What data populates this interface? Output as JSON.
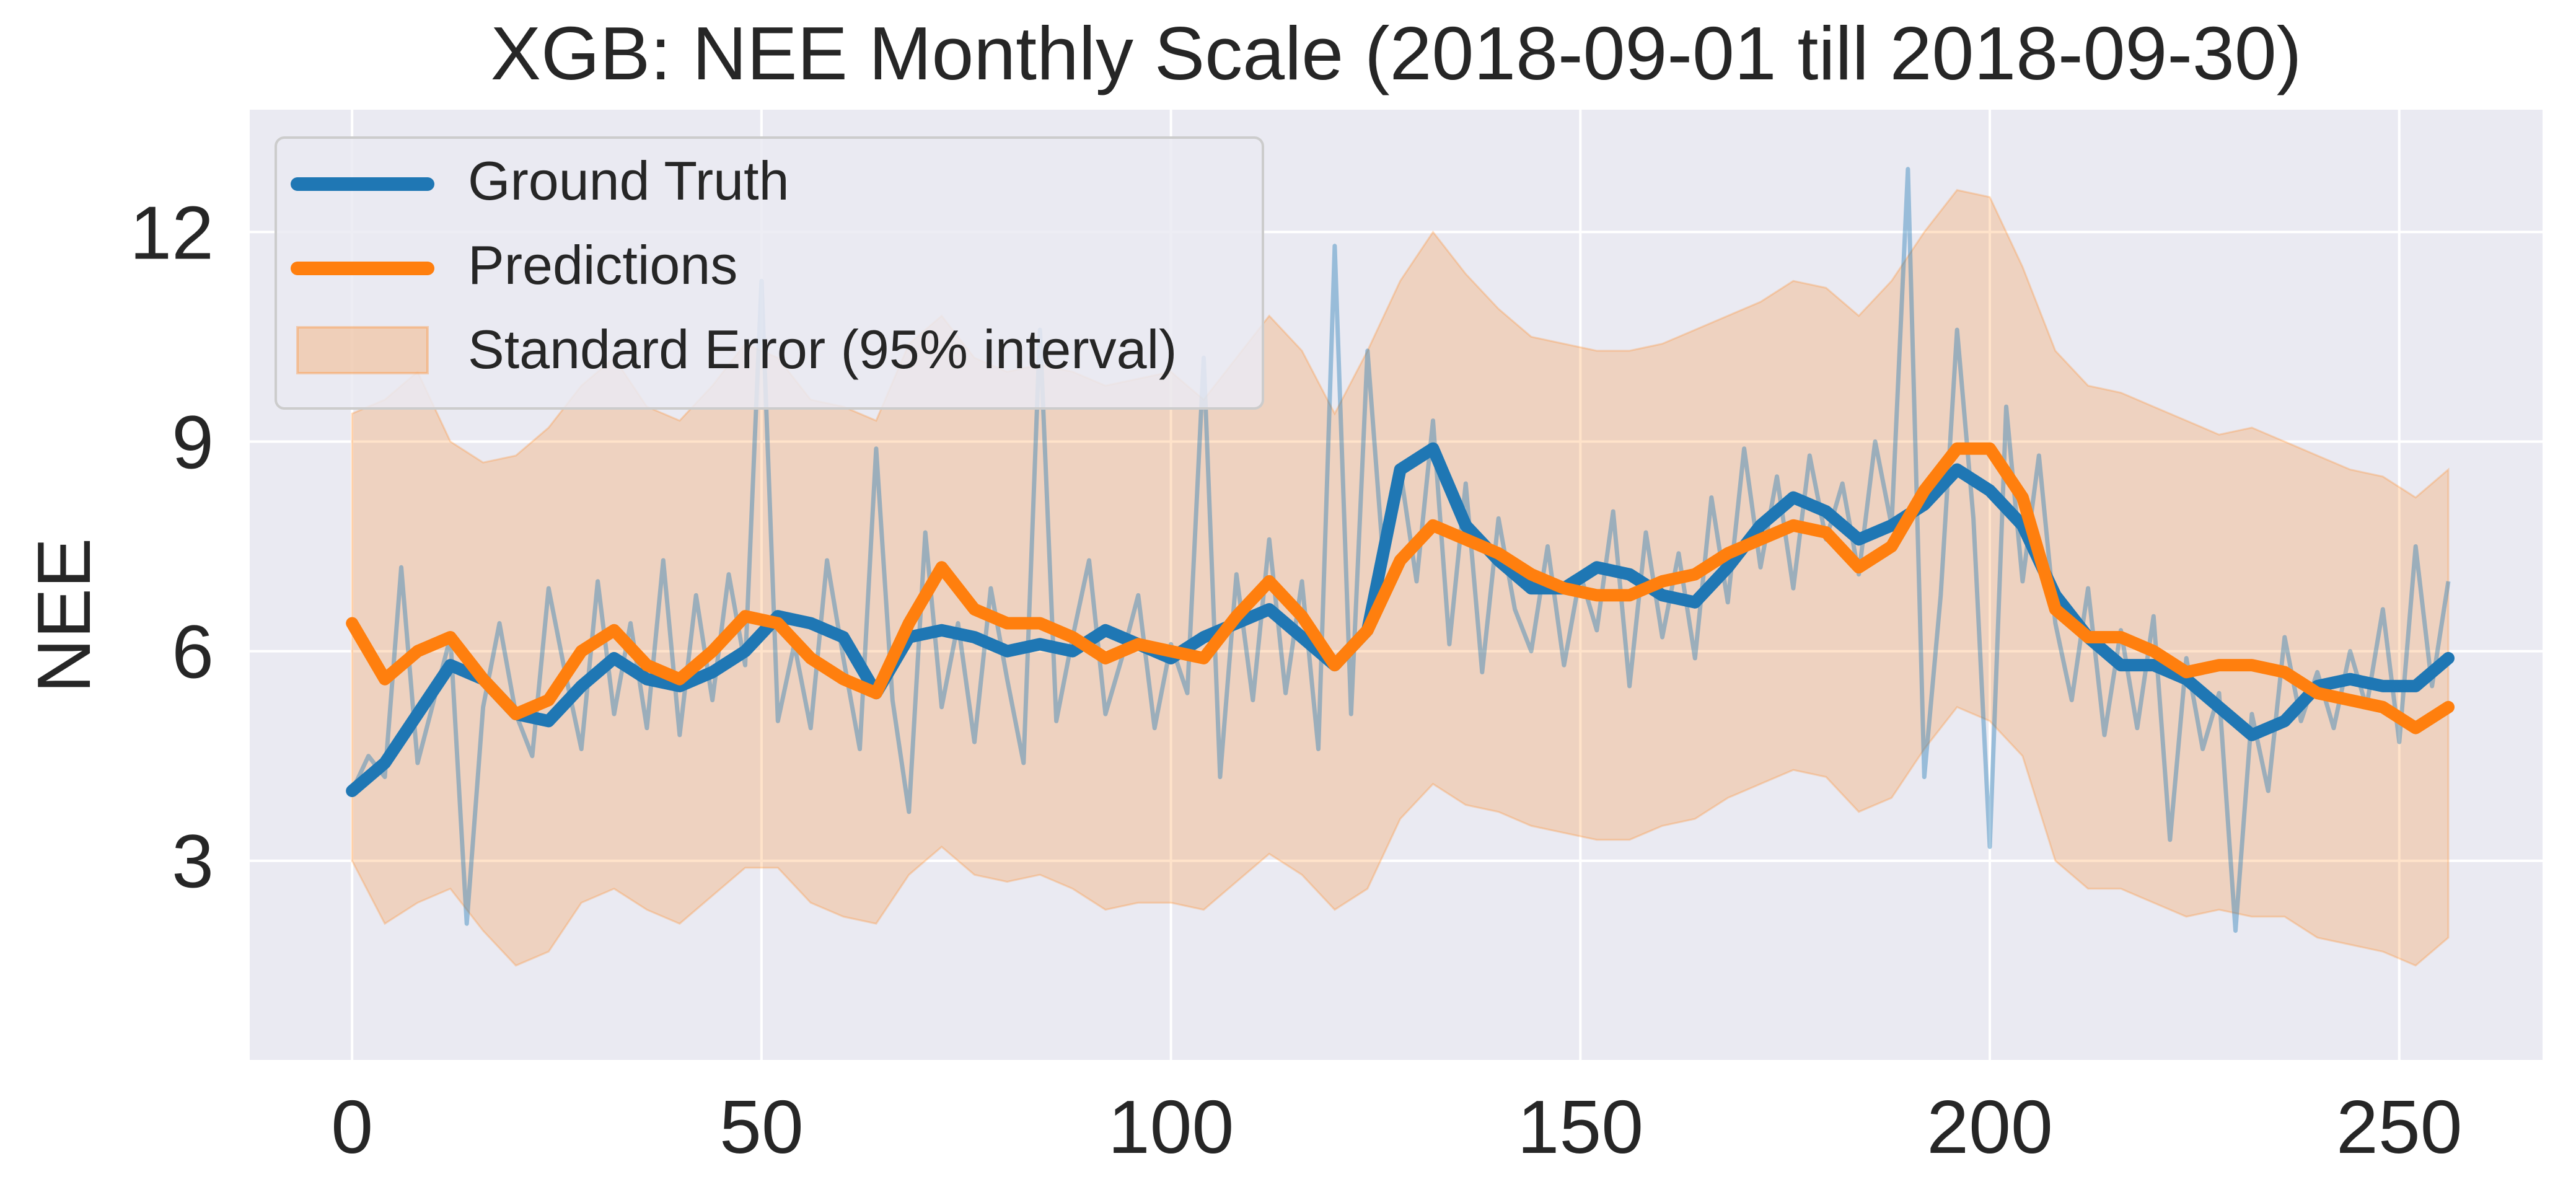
{
  "chart_data": {
    "type": "line",
    "title": "XGB: NEE Monthly Scale (2018-09-01 till 2018-09-30)",
    "xlabel": "",
    "ylabel": "NEE",
    "xlim": [
      -12.5,
      267.5
    ],
    "ylim": [
      0.15,
      13.75
    ],
    "xticks": [
      0,
      50,
      100,
      150,
      200,
      250
    ],
    "yticks": [
      3,
      6,
      9,
      12
    ],
    "grid": true,
    "legend_position": "upper left",
    "legend": [
      "Ground Truth",
      "Predictions",
      "Standard Error (95% interval)"
    ],
    "colors": {
      "ground_truth": "#1f77b4",
      "predictions": "#ff7f0e",
      "band": "#ff7f0e",
      "background": "#eaeaf2",
      "grid": "#ffffff"
    },
    "series": [
      {
        "name": "Ground Truth",
        "smoothed": true,
        "x": [
          0,
          4,
          8,
          12,
          16,
          20,
          24,
          28,
          32,
          36,
          40,
          44,
          48,
          52,
          56,
          60,
          64,
          68,
          72,
          76,
          80,
          84,
          88,
          92,
          96,
          100,
          104,
          108,
          112,
          116,
          120,
          124,
          128,
          132,
          136,
          140,
          144,
          148,
          152,
          156,
          160,
          164,
          168,
          172,
          176,
          180,
          184,
          188,
          192,
          196,
          200,
          204,
          208,
          212,
          216,
          220,
          224,
          228,
          232,
          236,
          240,
          244,
          248,
          252,
          256
        ],
        "values": [
          4.0,
          4.4,
          5.1,
          5.8,
          5.6,
          5.1,
          5.0,
          5.5,
          5.9,
          5.6,
          5.5,
          5.7,
          6.0,
          6.5,
          6.4,
          6.2,
          5.4,
          6.2,
          6.3,
          6.2,
          6.0,
          6.1,
          6.0,
          6.3,
          6.1,
          5.9,
          6.2,
          6.4,
          6.6,
          6.2,
          5.8,
          6.3,
          8.6,
          8.9,
          7.8,
          7.3,
          6.9,
          6.9,
          7.2,
          7.1,
          6.8,
          6.7,
          7.2,
          7.8,
          8.2,
          8.0,
          7.6,
          7.8,
          8.1,
          8.6,
          8.3,
          7.8,
          6.8,
          6.2,
          5.8,
          5.8,
          5.6,
          5.2,
          4.8,
          5.0,
          5.5,
          5.6,
          5.5,
          5.5,
          5.9
        ]
      },
      {
        "name": "Ground Truth",
        "raw": true,
        "x": [
          0,
          2,
          4,
          6,
          8,
          10,
          12,
          14,
          16,
          18,
          20,
          22,
          24,
          26,
          28,
          30,
          32,
          34,
          36,
          38,
          40,
          42,
          44,
          46,
          48,
          50,
          52,
          54,
          56,
          58,
          60,
          62,
          64,
          66,
          68,
          70,
          72,
          74,
          76,
          78,
          80,
          82,
          84,
          86,
          88,
          90,
          92,
          94,
          96,
          98,
          100,
          102,
          104,
          106,
          108,
          110,
          112,
          114,
          116,
          118,
          120,
          122,
          124,
          126,
          128,
          130,
          132,
          134,
          136,
          138,
          140,
          142,
          144,
          146,
          148,
          150,
          152,
          154,
          156,
          158,
          160,
          162,
          164,
          166,
          168,
          170,
          172,
          174,
          176,
          178,
          180,
          182,
          184,
          186,
          188,
          190,
          192,
          194,
          196,
          198,
          200,
          202,
          204,
          206,
          208,
          210,
          212,
          214,
          216,
          218,
          220,
          222,
          224,
          226,
          228,
          230,
          232,
          234,
          236,
          238,
          240,
          242,
          244,
          246,
          248,
          250,
          252,
          254,
          256
        ],
        "values": [
          4.0,
          4.5,
          4.2,
          7.2,
          4.4,
          5.3,
          6.2,
          2.1,
          5.2,
          6.4,
          5.1,
          4.5,
          6.9,
          5.7,
          4.6,
          7.0,
          5.1,
          6.4,
          4.9,
          7.3,
          4.8,
          6.8,
          5.3,
          7.1,
          5.8,
          11.3,
          5.0,
          6.1,
          4.9,
          7.3,
          5.9,
          4.6,
          8.9,
          5.3,
          3.7,
          7.7,
          5.2,
          6.4,
          4.7,
          6.9,
          5.6,
          4.4,
          10.6,
          5.0,
          6.2,
          7.3,
          5.1,
          5.9,
          6.8,
          4.9,
          6.1,
          5.4,
          10.2,
          4.2,
          7.1,
          5.3,
          7.6,
          5.4,
          7.0,
          4.6,
          11.8,
          5.1,
          10.3,
          7.2,
          8.6,
          7.0,
          9.3,
          6.1,
          8.4,
          5.7,
          7.9,
          6.6,
          6.0,
          7.5,
          5.8,
          7.1,
          6.3,
          8.0,
          5.5,
          7.7,
          6.2,
          7.4,
          5.9,
          8.2,
          6.7,
          8.9,
          7.2,
          8.5,
          6.9,
          8.8,
          7.6,
          8.4,
          7.1,
          9.0,
          7.8,
          12.9,
          4.2,
          6.8,
          10.6,
          7.9,
          3.2,
          9.5,
          7.0,
          8.8,
          6.4,
          5.3,
          6.9,
          4.8,
          6.3,
          4.9,
          6.5,
          3.3,
          5.9,
          4.6,
          5.4,
          2.0,
          5.1,
          4.0,
          6.2,
          5.0,
          5.7,
          4.9,
          6.0,
          5.2,
          6.6,
          4.7,
          7.5,
          5.5,
          7.0
        ]
      },
      {
        "name": "Predictions",
        "smoothed": true,
        "x": [
          0,
          4,
          8,
          12,
          16,
          20,
          24,
          28,
          32,
          36,
          40,
          44,
          48,
          52,
          56,
          60,
          64,
          68,
          72,
          76,
          80,
          84,
          88,
          92,
          96,
          100,
          104,
          108,
          112,
          116,
          120,
          124,
          128,
          132,
          136,
          140,
          144,
          148,
          152,
          156,
          160,
          164,
          168,
          172,
          176,
          180,
          184,
          188,
          192,
          196,
          200,
          204,
          208,
          212,
          216,
          220,
          224,
          228,
          232,
          236,
          240,
          244,
          248,
          252,
          256
        ],
        "values": [
          6.4,
          5.6,
          6.0,
          6.2,
          5.6,
          5.1,
          5.3,
          6.0,
          6.3,
          5.8,
          5.6,
          6.0,
          6.5,
          6.4,
          5.9,
          5.6,
          5.4,
          6.4,
          7.2,
          6.6,
          6.4,
          6.4,
          6.2,
          5.9,
          6.1,
          6.0,
          5.9,
          6.5,
          7.0,
          6.5,
          5.8,
          6.3,
          7.3,
          7.8,
          7.6,
          7.4,
          7.1,
          6.9,
          6.8,
          6.8,
          7.0,
          7.1,
          7.4,
          7.6,
          7.8,
          7.7,
          7.2,
          7.5,
          8.3,
          8.9,
          8.9,
          8.2,
          6.6,
          6.2,
          6.2,
          6.0,
          5.7,
          5.8,
          5.8,
          5.7,
          5.4,
          5.3,
          5.2,
          4.9,
          5.2
        ]
      },
      {
        "name": "Standard Error (95% interval)",
        "type": "band",
        "x": [
          0,
          4,
          8,
          12,
          16,
          20,
          24,
          28,
          32,
          36,
          40,
          44,
          48,
          52,
          56,
          60,
          64,
          68,
          72,
          76,
          80,
          84,
          88,
          92,
          96,
          100,
          104,
          108,
          112,
          116,
          120,
          124,
          128,
          132,
          136,
          140,
          144,
          148,
          152,
          156,
          160,
          164,
          168,
          172,
          176,
          180,
          184,
          188,
          192,
          196,
          200,
          204,
          208,
          212,
          216,
          220,
          224,
          228,
          232,
          236,
          240,
          244,
          248,
          252,
          256
        ],
        "upper": [
          9.4,
          9.6,
          10.0,
          9.0,
          8.7,
          8.8,
          9.2,
          9.8,
          10.2,
          9.5,
          9.3,
          9.8,
          10.4,
          10.2,
          9.6,
          9.5,
          9.3,
          10.4,
          10.8,
          10.2,
          10.0,
          10.1,
          10.0,
          9.8,
          9.9,
          10.0,
          9.6,
          10.2,
          10.8,
          10.3,
          9.4,
          10.3,
          11.3,
          12.0,
          11.4,
          10.9,
          10.5,
          10.4,
          10.3,
          10.3,
          10.4,
          10.6,
          10.8,
          11.0,
          11.3,
          11.2,
          10.8,
          11.3,
          12.0,
          12.6,
          12.5,
          11.5,
          10.3,
          9.8,
          9.7,
          9.5,
          9.3,
          9.1,
          9.2,
          9.0,
          8.8,
          8.6,
          8.5,
          8.2,
          8.6
        ],
        "lower": [
          3.0,
          2.1,
          2.4,
          2.6,
          2.0,
          1.5,
          1.7,
          2.4,
          2.6,
          2.3,
          2.1,
          2.5,
          2.9,
          2.9,
          2.4,
          2.2,
          2.1,
          2.8,
          3.2,
          2.8,
          2.7,
          2.8,
          2.6,
          2.3,
          2.4,
          2.4,
          2.3,
          2.7,
          3.1,
          2.8,
          2.3,
          2.6,
          3.6,
          4.1,
          3.8,
          3.7,
          3.5,
          3.4,
          3.3,
          3.3,
          3.5,
          3.6,
          3.9,
          4.1,
          4.3,
          4.2,
          3.7,
          3.9,
          4.6,
          5.2,
          5.0,
          4.5,
          3.0,
          2.6,
          2.6,
          2.4,
          2.2,
          2.3,
          2.2,
          2.2,
          1.9,
          1.8,
          1.7,
          1.5,
          1.9
        ]
      }
    ]
  }
}
